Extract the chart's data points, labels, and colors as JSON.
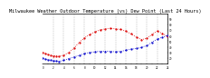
{
  "title": "Milwaukee Weather Outdoor Temperature (vs) Dew Point (Last 24 Hours)",
  "title_fontsize": 3.8,
  "background_color": "#ffffff",
  "grid_color": "#888888",
  "temp_color": "#dd0000",
  "dew_color": "#0000cc",
  "ylim": [
    10,
    100
  ],
  "xlim": [
    0,
    24
  ],
  "temp_x": [
    0,
    0.5,
    1,
    1.5,
    2,
    2.5,
    3,
    4,
    5,
    6,
    7,
    8,
    9,
    10,
    11,
    12,
    13,
    14,
    15,
    16,
    17,
    18,
    19,
    20,
    21,
    22,
    23,
    24
  ],
  "temp_y": [
    30,
    28,
    26,
    25,
    24,
    24,
    23,
    25,
    30,
    38,
    48,
    56,
    62,
    67,
    70,
    72,
    73,
    72,
    71,
    68,
    63,
    57,
    53,
    55,
    62,
    68,
    64,
    58
  ],
  "dew_x": [
    0,
    0.5,
    1,
    1.5,
    2,
    2.5,
    3,
    4,
    5,
    6,
    7,
    8,
    9,
    10,
    11,
    12,
    13,
    14,
    15,
    16,
    17,
    18,
    19,
    20,
    21,
    22,
    23,
    24
  ],
  "dew_y": [
    20,
    18,
    17,
    16,
    15,
    15,
    14,
    16,
    19,
    22,
    25,
    28,
    30,
    31,
    32,
    32,
    32,
    31,
    32,
    34,
    36,
    37,
    39,
    42,
    48,
    54,
    57,
    60
  ],
  "ytick_positions": [
    20,
    30,
    40,
    50,
    60,
    70,
    80,
    90
  ],
  "ytick_labels": [
    "20",
    "30",
    "40",
    "50",
    "60",
    "70",
    "80",
    "90"
  ],
  "vgrid_positions": [
    2,
    4,
    6,
    8,
    10,
    12,
    14,
    16,
    18,
    20,
    22,
    24
  ],
  "marker_size": 1.2,
  "linewidth": 0.6
}
